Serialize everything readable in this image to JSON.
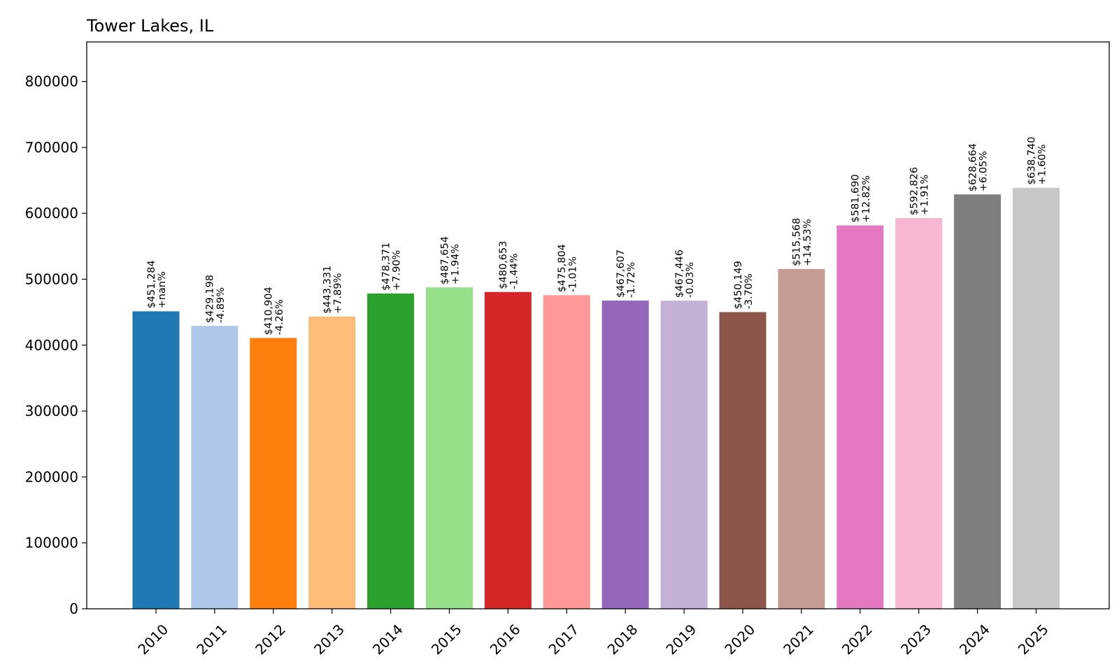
{
  "chart_data": {
    "type": "bar",
    "title": "Tower Lakes, IL",
    "xlabel": "",
    "ylabel": "",
    "ylim": [
      0,
      860000
    ],
    "yticks": [
      0,
      100000,
      200000,
      300000,
      400000,
      500000,
      600000,
      700000,
      800000
    ],
    "ytick_labels": [
      "0",
      "100000",
      "200000",
      "300000",
      "400000",
      "500000",
      "600000",
      "700000",
      "800000"
    ],
    "categories": [
      "2010",
      "2011",
      "2012",
      "2013",
      "2014",
      "2015",
      "2016",
      "2017",
      "2018",
      "2019",
      "2020",
      "2021",
      "2022",
      "2023",
      "2024",
      "2025"
    ],
    "values": [
      451284,
      429198,
      410904,
      443331,
      478371,
      487654,
      480653,
      475804,
      467607,
      467446,
      450149,
      515568,
      581690,
      592826,
      628664,
      638740
    ],
    "value_labels": [
      "$451,284",
      "$429,198",
      "$410,904",
      "$443,331",
      "$478,371",
      "$487,654",
      "$480,653",
      "$475,804",
      "$467,607",
      "$467,446",
      "$450,149",
      "$515,568",
      "$581,690",
      "$592,826",
      "$628,664",
      "$638,740"
    ],
    "change_labels": [
      "+nan%",
      "-4.89%",
      "-4.26%",
      "+7.89%",
      "+7.90%",
      "+1.94%",
      "-1.44%",
      "-1.01%",
      "-1.72%",
      "-0.03%",
      "-3.70%",
      "+14.53%",
      "+12.82%",
      "+1.91%",
      "+6.05%",
      "+1.60%"
    ],
    "colors": [
      "#1f77b4",
      "#aec7e8",
      "#ff7f0e",
      "#ffbb78",
      "#2ca02c",
      "#98df8a",
      "#d62728",
      "#ff9896",
      "#9467bd",
      "#c5b0d5",
      "#8c564b",
      "#c49c94",
      "#e377c2",
      "#f7b6d2",
      "#7f7f7f",
      "#c7c7c7"
    ],
    "grid": false,
    "legend": "none"
  }
}
